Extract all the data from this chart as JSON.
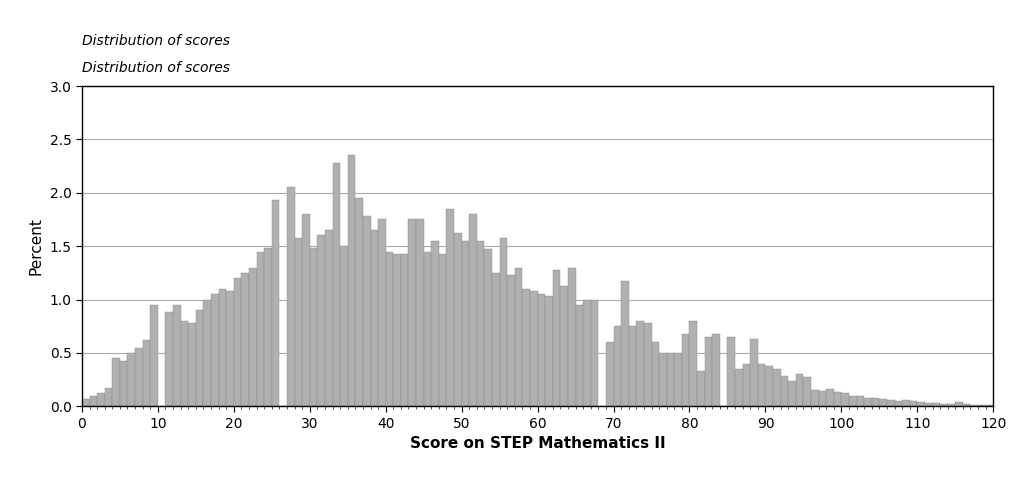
{
  "title": "Distribution of scores",
  "xlabel": "Score on STEP Mathematics II",
  "ylabel": "Percent",
  "xlim": [
    0,
    120
  ],
  "ylim": [
    0,
    3.0
  ],
  "yticks": [
    0.0,
    0.5,
    1.0,
    1.5,
    2.0,
    2.5,
    3.0
  ],
  "xticks": [
    0,
    10,
    20,
    30,
    40,
    50,
    60,
    70,
    80,
    90,
    100,
    110,
    120
  ],
  "bar_color": "#B0B0B0",
  "bar_edge_color": "#888888",
  "background_color": "#FFFFFF",
  "values": [
    0.07,
    0.1,
    0.12,
    0.17,
    0.45,
    0.42,
    0.5,
    0.55,
    0.62,
    0.95,
    0.0,
    0.88,
    0.95,
    0.8,
    0.78,
    0.9,
    1.0,
    1.05,
    1.1,
    1.08,
    1.2,
    1.25,
    1.3,
    1.45,
    1.48,
    1.93,
    0.0,
    2.05,
    1.58,
    1.8,
    1.48,
    1.6,
    1.65,
    2.28,
    1.5,
    2.35,
    1.95,
    1.78,
    1.65,
    1.75,
    1.45,
    1.43,
    1.43,
    1.75,
    1.75,
    1.45,
    1.55,
    1.43,
    1.85,
    1.62,
    1.55,
    1.8,
    1.55,
    1.47,
    1.25,
    1.58,
    1.23,
    1.3,
    1.1,
    1.08,
    1.05,
    1.03,
    1.28,
    1.13,
    1.3,
    0.95,
    1.0,
    1.0,
    0.0,
    0.6,
    0.75,
    1.17,
    0.75,
    0.8,
    0.78,
    0.6,
    0.5,
    0.5,
    0.5,
    0.68,
    0.8,
    0.33,
    0.65,
    0.68,
    0.0,
    0.65,
    0.35,
    0.4,
    0.63,
    0.4,
    0.38,
    0.35,
    0.28,
    0.24,
    0.3,
    0.27,
    0.15,
    0.14,
    0.16,
    0.13,
    0.12,
    0.1,
    0.1,
    0.08,
    0.08,
    0.07,
    0.06,
    0.05,
    0.06,
    0.05,
    0.04,
    0.03,
    0.03,
    0.02,
    0.02,
    0.04,
    0.02,
    0.01,
    0.01,
    0.01
  ],
  "title_fontstyle": "italic",
  "title_fontsize": 10,
  "axis_label_fontsize": 11,
  "grid_color": "#AAAAAA",
  "grid_linewidth": 0.8
}
